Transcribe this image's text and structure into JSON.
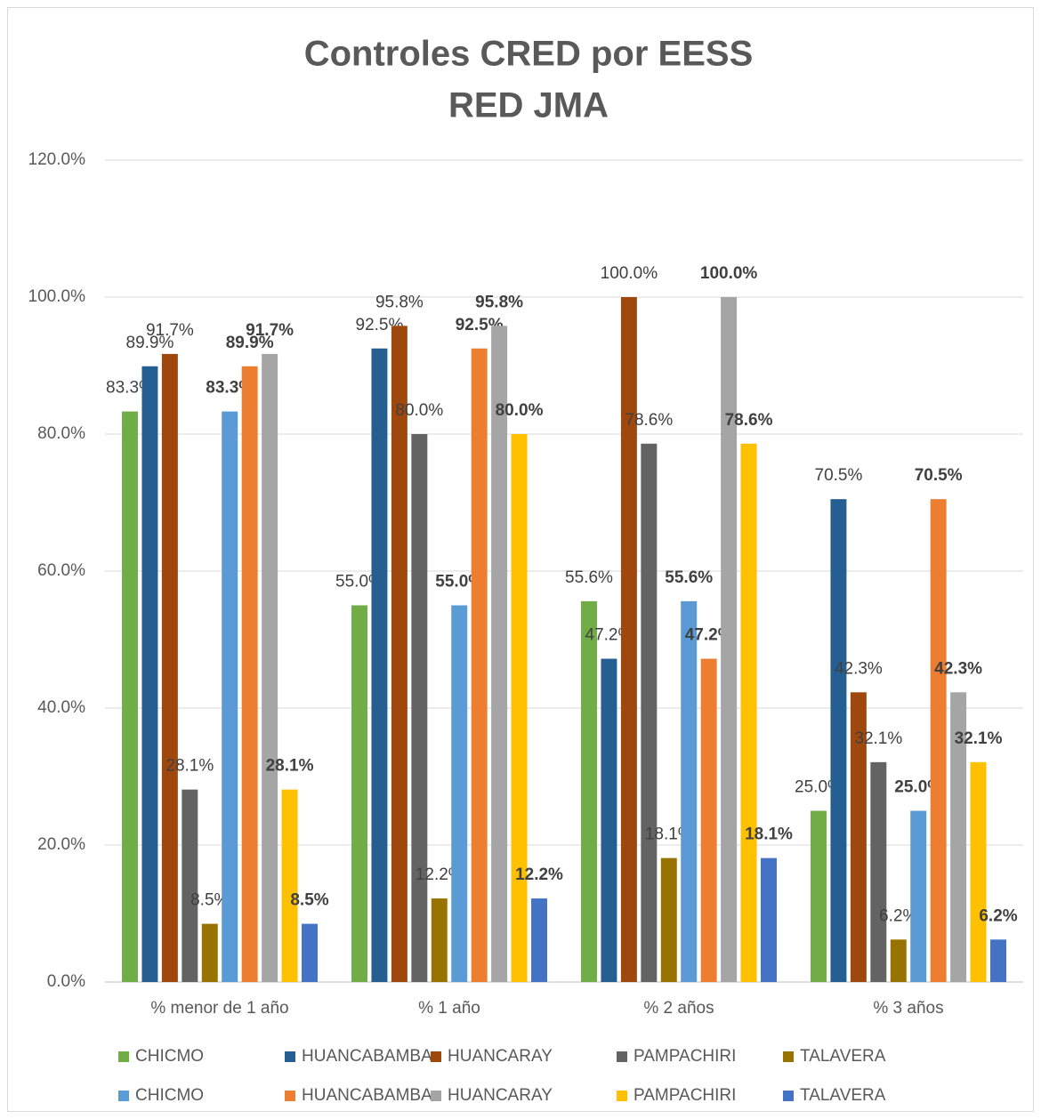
{
  "chart_data": {
    "type": "bar",
    "title": [
      "Controles CRED por EESS",
      "RED JMA"
    ],
    "categories": [
      "% menor de 1 año",
      "% 1 año",
      "% 2 años",
      "% 3 años"
    ],
    "ylim": [
      0,
      120
    ],
    "yticks": [
      {
        "value": 0,
        "label": "0.0%"
      },
      {
        "value": 20,
        "label": "20.0%"
      },
      {
        "value": 40,
        "label": "40.0%"
      },
      {
        "value": 60,
        "label": "60.0%"
      },
      {
        "value": 80,
        "label": "80.0%"
      },
      {
        "value": 100,
        "label": "100.0%"
      },
      {
        "value": 120,
        "label": "120.0%"
      }
    ],
    "grid": true,
    "legend": "bottom",
    "series": [
      {
        "name": "CHICMO",
        "color": "#70ad47",
        "values": [
          83.3,
          55.0,
          55.6,
          25.0
        ],
        "value_labels": [
          "83.3%",
          "55.0%",
          "55.6%",
          "25.0%"
        ],
        "bold_labels": false
      },
      {
        "name": "HUANCABAMBA",
        "color": "#255e91",
        "values": [
          89.9,
          92.5,
          47.2,
          70.5
        ],
        "value_labels": [
          "89.9%",
          "92.5%",
          "47.2%",
          "70.5%"
        ],
        "bold_labels": false
      },
      {
        "name": "HUANCARAY",
        "color": "#9e480e",
        "values": [
          91.7,
          95.8,
          100.0,
          42.3
        ],
        "value_labels": [
          "91.7%",
          "95.8%",
          "100.0%",
          "42.3%"
        ],
        "bold_labels": false
      },
      {
        "name": "PAMPACHIRI",
        "color": "#636363",
        "values": [
          28.1,
          80.0,
          78.6,
          32.1
        ],
        "value_labels": [
          "28.1%",
          "80.0%",
          "78.6%",
          "32.1%"
        ],
        "bold_labels": false
      },
      {
        "name": "TALAVERA",
        "color": "#997300",
        "values": [
          8.5,
          12.2,
          18.1,
          6.2
        ],
        "value_labels": [
          "8.5%",
          "12.2%",
          "18.1%",
          "6.2%"
        ],
        "bold_labels": false
      },
      {
        "name": "CHICMO",
        "color": "#5b9bd5",
        "values": [
          83.3,
          55.0,
          55.6,
          25.0
        ],
        "value_labels": [
          "83.3%",
          "55.0%",
          "55.6%",
          "25.0%"
        ],
        "bold_labels": true
      },
      {
        "name": "HUANCABAMBA",
        "color": "#ed7d31",
        "values": [
          89.9,
          92.5,
          47.2,
          70.5
        ],
        "value_labels": [
          "89.9%",
          "92.5%",
          "47.2%",
          "70.5%"
        ],
        "bold_labels": true
      },
      {
        "name": "HUANCARAY",
        "color": "#a5a5a5",
        "values": [
          91.7,
          95.8,
          100.0,
          42.3
        ],
        "value_labels": [
          "91.7%",
          "95.8%",
          "100.0%",
          "42.3%"
        ],
        "bold_labels": true
      },
      {
        "name": "PAMPACHIRI",
        "color": "#ffc000",
        "values": [
          28.1,
          80.0,
          78.6,
          32.1
        ],
        "value_labels": [
          "28.1%",
          "80.0%",
          "78.6%",
          "32.1%"
        ],
        "bold_labels": true
      },
      {
        "name": "TALAVERA",
        "color": "#4472c4",
        "values": [
          8.5,
          12.2,
          18.1,
          6.2
        ],
        "value_labels": [
          "8.5%",
          "12.2%",
          "18.1%",
          "6.2%"
        ],
        "bold_labels": true
      }
    ]
  }
}
